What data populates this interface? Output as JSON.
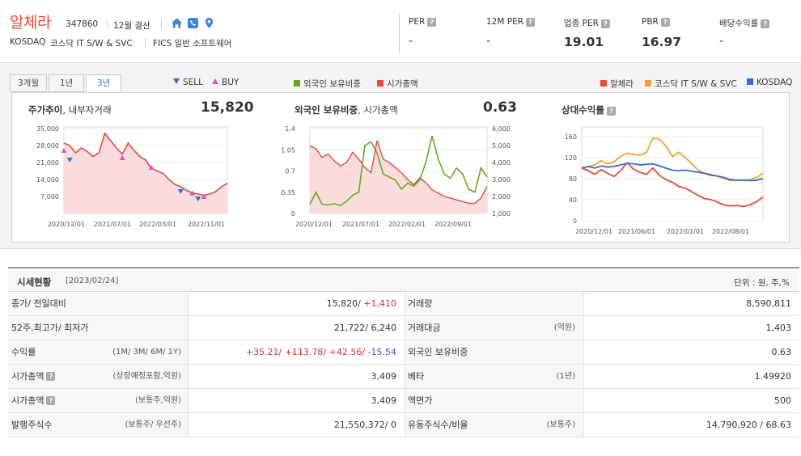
{
  "company": {
    "name": "알체라",
    "code": "347860",
    "settlement": "12월 결산",
    "market": "KOSDAQ",
    "sector": "코스닥 IT S/W & SVC",
    "fics": "FICS 일반 소프트웨어",
    "icons": [
      "home-icon",
      "phone-icon",
      "location-pin-icon"
    ]
  },
  "metrics": [
    {
      "label": "PER",
      "value": "-"
    },
    {
      "label": "12M PER",
      "value": "-"
    },
    {
      "label": "업종 PER",
      "value": "19.01"
    },
    {
      "label": "PBR",
      "value": "16.97"
    },
    {
      "label": "배당수익률",
      "value": "-"
    }
  ],
  "help_mark": "?",
  "tabs": [
    "3개월",
    "1년",
    "3년"
  ],
  "active_tab": "3년",
  "legend": {
    "sell": "SELL",
    "buy": "BUY",
    "foreign": "외국인 보유비중",
    "mktcap": "시가총액",
    "company": "알체라",
    "sector": "코스닥 IT S/W & SVC",
    "kosdaq": "KOSDAQ"
  },
  "colors": {
    "company_red": "#e24a3e",
    "foreign_green": "#6aa820",
    "sector_orange": "#f0a22e",
    "kosdaq_blue": "#2f6fcf",
    "sell_blue": "#2f6fcf",
    "buy_pink": "#d058c8"
  },
  "chart1": {
    "title_bold": "주가추이",
    "title_rest": ", 내부자거래",
    "value": "15,820"
  },
  "chart2": {
    "title_bold": "외국인 보유비중",
    "title_rest": ", 시가총액",
    "value": "0.63"
  },
  "chart3": {
    "title_bold": "상대수익률"
  },
  "chart_data": [
    {
      "type": "area",
      "title": "주가추이, 내부자거래",
      "x_tick_labels": [
        "2020/12/01",
        "2021/07/01",
        "2022/03/01",
        "2022/11/01"
      ],
      "y_tick_labels": [
        "35,000",
        "28,000",
        "21,000",
        "14,000",
        "7,000"
      ],
      "ylim": [
        0,
        35000
      ],
      "series": [
        {
          "name": "주가",
          "values": [
            29000,
            28000,
            25000,
            27000,
            25500,
            23500,
            25000,
            33000,
            30000,
            27000,
            24500,
            29000,
            26000,
            23500,
            22000,
            18500,
            17500,
            16500,
            14000,
            12000,
            11000,
            9500,
            8500,
            8000,
            7500,
            8000,
            9000,
            11000,
            12500
          ]
        }
      ],
      "markers": [
        {
          "type": "BUY",
          "index": 0,
          "value": 26000
        },
        {
          "type": "SELL",
          "index": 1,
          "value": 22000
        },
        {
          "type": "BUY",
          "index": 10,
          "value": 23000
        },
        {
          "type": "BUY",
          "index": 15,
          "value": 19000
        },
        {
          "type": "SELL",
          "index": 20,
          "value": 9000
        },
        {
          "type": "BUY",
          "index": 22,
          "value": 8500
        },
        {
          "type": "SELL",
          "index": 23,
          "value": 6000
        },
        {
          "type": "BUY",
          "index": 24,
          "value": 7000
        }
      ]
    },
    {
      "type": "line",
      "title": "외국인 보유비중, 시가총액",
      "x_tick_labels": [
        "2020/12/01",
        "2021/07/01",
        "2022/02/01",
        "2022/09/01"
      ],
      "y_left_tick_labels": [
        "1.4",
        "1.05",
        "0.7",
        "0.35",
        "0"
      ],
      "y_right_tick_labels": [
        "6,000",
        "5,000",
        "4,000",
        "3,000",
        "2,000",
        "1,000"
      ],
      "ylim_left": [
        0,
        1.4
      ],
      "ylim_right": [
        1000,
        6000
      ],
      "series": [
        {
          "name": "외국인 보유비중",
          "axis": "left",
          "values": [
            0.15,
            0.35,
            0.15,
            0.14,
            0.16,
            0.13,
            0.2,
            0.3,
            0.35,
            1.12,
            1.18,
            1.0,
            0.65,
            0.6,
            0.55,
            0.4,
            0.5,
            0.45,
            0.55,
            0.85,
            1.28,
            0.9,
            0.65,
            0.58,
            0.75,
            0.65,
            0.4,
            0.35,
            0.75,
            0.6
          ]
        },
        {
          "name": "시가총액",
          "axis": "right",
          "values": [
            5000,
            4800,
            4300,
            4500,
            4100,
            3800,
            4000,
            4600,
            4200,
            3700,
            3400,
            5300,
            4200,
            4000,
            3700,
            3400,
            3000,
            2700,
            3100,
            2800,
            2400,
            2200,
            2000,
            1900,
            1800,
            1700,
            1600,
            1600,
            1900,
            2600
          ]
        }
      ]
    },
    {
      "type": "line",
      "title": "상대수익률",
      "x_tick_labels": [
        "2020/12/01",
        "2021/06/01",
        "2022/01/01",
        "2022/08/01"
      ],
      "y_tick_labels": [
        "160",
        "120",
        "80",
        "40",
        "0"
      ],
      "ylim": [
        0,
        175
      ],
      "series": [
        {
          "name": "알체라",
          "values": [
            100,
            95,
            88,
            97,
            90,
            84,
            95,
            110,
            98,
            92,
            88,
            100,
            86,
            78,
            73,
            65,
            62,
            55,
            48,
            42,
            40,
            35,
            30,
            28,
            29,
            27,
            30,
            36,
            45
          ]
        },
        {
          "name": "코스닥 IT S/W & SVC",
          "values": [
            100,
            103,
            106,
            114,
            108,
            112,
            122,
            128,
            126,
            124,
            130,
            157,
            155,
            142,
            122,
            130,
            120,
            108,
            96,
            90,
            88,
            84,
            80,
            76,
            77,
            77,
            78,
            82,
            90
          ]
        },
        {
          "name": "KOSDAQ",
          "values": [
            100,
            103,
            100,
            104,
            102,
            103,
            106,
            109,
            108,
            106,
            107,
            108,
            104,
            100,
            96,
            95,
            96,
            94,
            92,
            90,
            86,
            85,
            82,
            78,
            77,
            77,
            76,
            77,
            80
          ]
        }
      ]
    }
  ],
  "market": {
    "title": "시세현황",
    "date": "[2023/02/24]",
    "unit": "단위 : 원, 주,%",
    "rows": [
      {
        "l_label": "종가/ 전일대비",
        "l_sub": "",
        "l_help": false,
        "l_val_a": "15,820/ ",
        "l_val_b": "+1,410",
        "l_val_b2": "",
        "l_val_c": "",
        "r_label": "거래량",
        "r_sub": "",
        "r_val": "8,590,811"
      },
      {
        "l_label": "52주.최고가/ 최저가",
        "l_sub": "",
        "l_help": false,
        "l_val_a": "21,722/ 6,240",
        "l_val_b": "",
        "l_val_b2": "",
        "l_val_c": "",
        "r_label": "거래대금",
        "r_sub": "(억원)",
        "r_val": "1,403"
      },
      {
        "l_label": "수익률",
        "l_sub": "(1M/ 3M/ 6M/ 1Y)",
        "l_help": false,
        "l_val_a": "",
        "l_val_b": "+35.21/ +113.78/ +42.56/ ",
        "l_val_b2": "",
        "l_val_c": "-15.54",
        "r_label": "외국인 보유비중",
        "r_sub": "",
        "r_val": "0.63"
      },
      {
        "l_label": "시가총액",
        "l_sub": "(상장예정포함,억원)",
        "l_help": true,
        "l_val_a": "3,409",
        "l_val_b": "",
        "l_val_b2": "",
        "l_val_c": "",
        "r_label": "베타",
        "r_sub": "(1년)",
        "r_val": "1.49920"
      },
      {
        "l_label": "시가총액",
        "l_sub": "(보통주,억원)",
        "l_help": true,
        "l_val_a": "3,409",
        "l_val_b": "",
        "l_val_b2": "",
        "l_val_c": "",
        "r_label": "액면가",
        "r_sub": "",
        "r_val": "500"
      },
      {
        "l_label": "발행주식수",
        "l_sub": "(보통주/ 우선주)",
        "l_help": false,
        "l_val_a": "21,550,372/ 0",
        "l_val_b": "",
        "l_val_b2": "",
        "l_val_c": "",
        "r_label": "유동주식수/비율",
        "r_sub": "(보통주)",
        "r_val": "14,790,920 / 68.63"
      }
    ]
  }
}
